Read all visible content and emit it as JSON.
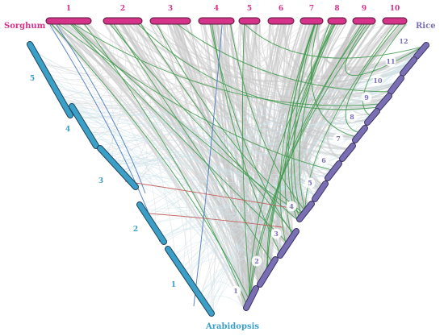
{
  "genomes": {
    "sorghum": {
      "label": "Sorghum",
      "color": "#d6338a",
      "chromosomes": [
        "1",
        "2",
        "3",
        "4",
        "5",
        "6",
        "7",
        "8",
        "9",
        "10"
      ]
    },
    "rice": {
      "label": "Rice",
      "color": "#7b6fb3",
      "chromosomes": [
        "1",
        "2",
        "3",
        "4",
        "5",
        "6",
        "7",
        "8",
        "9",
        "10",
        "11",
        "12"
      ]
    },
    "arabidopsis": {
      "label": "Arabidopsis",
      "color": "#3aa0c8",
      "chromosomes": [
        "1",
        "2",
        "3",
        "4",
        "5"
      ]
    }
  },
  "link_colors": {
    "sorghum_rice": "#c7c7c7",
    "sorghum_arabidopsis": "#4a7bbf",
    "rice_arabidopsis": "#c0504d",
    "highlight": "#3f9a4c"
  }
}
